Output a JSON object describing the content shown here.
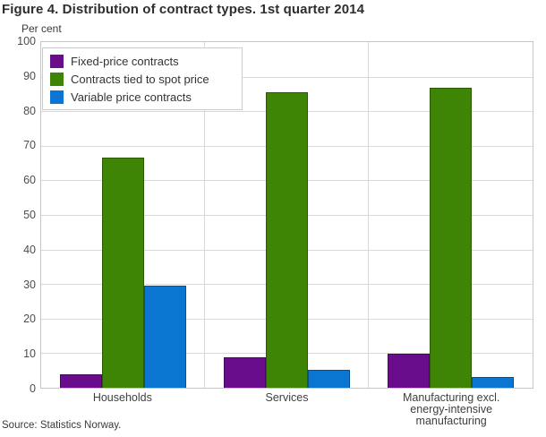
{
  "source": "Source: Statistics Norway.",
  "chart_data": {
    "type": "bar",
    "title": "Figure 4. Distribution of contract types. 1st quarter 2014",
    "xlabel": "",
    "ylabel": "Per cent",
    "ylim": [
      0,
      100
    ],
    "yticks": [
      0,
      10,
      20,
      30,
      40,
      50,
      60,
      70,
      80,
      90,
      100
    ],
    "grid": "horizontal gridlines on, vertical separators between category bands",
    "legend_position": "top-left inside plot, white box with gray border",
    "categories": [
      "Households",
      "Services",
      "Manufacturing excl.\nenergy-intensive\nmanufacturing"
    ],
    "series": [
      {
        "name": "Fixed-price contracts",
        "color": "#690d8c",
        "border_color": "#45085d",
        "values": [
          3.9,
          8.9,
          9.9
        ]
      },
      {
        "name": "Contracts tied to spot price",
        "color": "#3e8505",
        "border_color": "#2a5a02",
        "values": [
          66.5,
          85.5,
          86.7
        ]
      },
      {
        "name": "Variable price contracts",
        "color": "#0a76d2",
        "border_color": "#084f8c",
        "values": [
          29.5,
          5.3,
          3.0
        ]
      }
    ],
    "grid_color": "#d9d9d9",
    "plot_border_color": "#c6c6c6",
    "text_color": "#3f3f3f"
  }
}
